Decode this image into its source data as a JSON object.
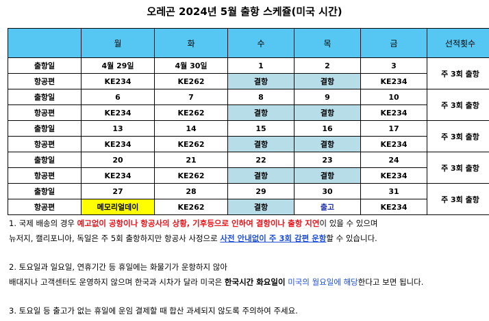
{
  "title": "오레곤 2024년 5월 출항 스케쥴(미국 시간)",
  "table": {
    "headers": [
      "",
      "월",
      "화",
      "수",
      "목",
      "금",
      "선적횟수"
    ],
    "weeks": [
      {
        "departure_label": "출항일",
        "flight_label": "항공편",
        "dates": [
          "4월 29일",
          "4월 30일",
          "1",
          "2",
          "3"
        ],
        "flights": [
          "KE234",
          "KE262",
          "결항",
          "결항",
          "KE234"
        ],
        "frequency": "주 3회 출항"
      },
      {
        "departure_label": "출항일",
        "flight_label": "항공편",
        "dates": [
          "6",
          "7",
          "8",
          "9",
          "10"
        ],
        "flights": [
          "KE234",
          "KE262",
          "결항",
          "결항",
          "KE234"
        ],
        "frequency": "주 3회 출항"
      },
      {
        "departure_label": "출항일",
        "flight_label": "항공편",
        "dates": [
          "13",
          "14",
          "15",
          "16",
          "17"
        ],
        "flights": [
          "KE234",
          "KE262",
          "결항",
          "결항",
          "KE234"
        ],
        "frequency": "주 3회 출항"
      },
      {
        "departure_label": "출항일",
        "flight_label": "항공편",
        "dates": [
          "20",
          "21",
          "22",
          "23",
          "24"
        ],
        "flights": [
          "KE234",
          "KE262",
          "결항",
          "결항",
          "KE234"
        ],
        "frequency": "주 3회 출항"
      },
      {
        "departure_label": "출항일",
        "flight_label": "항공편",
        "dates": [
          "27",
          "28",
          "29",
          "30",
          "31"
        ],
        "flights": [
          "메모리얼데이",
          "KE262",
          "결항",
          "출고",
          "KE234"
        ],
        "frequency": "주 3회 출항"
      }
    ],
    "colors": {
      "header": "#56c7f2",
      "closed": "#b7dee8",
      "memorial": "#ffff00"
    }
  },
  "notes": {
    "n1_a": "1. 국제 배송의 경우 ",
    "n1_red": "예고없이 공항이나 항공사의 상황, 기후등으로 인하여 결항이나 출항 지연",
    "n1_b": "이 있을 수 있으며",
    "n1_line2_a": "뉴저지, 캘리포니아, 독일은 주 5회 출항하지만 항공사 사정으로 ",
    "n1_blue": "사전 안내없이 주 3회 감편 운항",
    "n1_line2_b": "할 수 있습니다.",
    "n2_line1": "2. 토요일과 일요일, 연휴기간 등 휴일에는 화물기가 운항하지 않아",
    "n2_line2_a": "배대지나 고객센터도 운영하지 않으며 한국과 시차가 달라 미국은 ",
    "n2_bold": "한국시간 화요일이",
    "n2_blue": " 미국의 월요일에 해당",
    "n2_line2_b": "한다고 보면 됩니다.",
    "n3": "3. 토요일 등 출고가 없는 휴일에 운임 결제할 때 합산 과세되지 않도록 주의하여 주세요."
  }
}
